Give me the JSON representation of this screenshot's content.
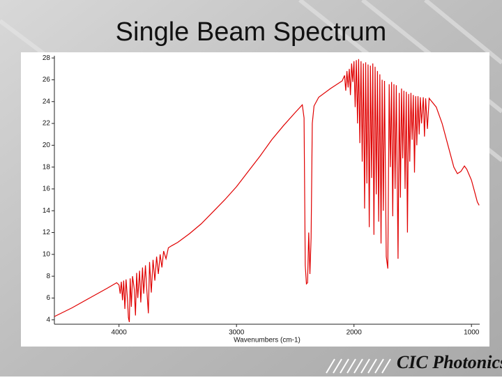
{
  "chart_data": {
    "type": "line",
    "title": "Single Beam Spectrum",
    "xlabel": "Wavenumbers (cm-1)",
    "x": [
      4550,
      4400,
      4250,
      4100,
      4020,
      4000,
      3990,
      3980,
      3970,
      3960,
      3950,
      3940,
      3930,
      3920,
      3912,
      3905,
      3895,
      3885,
      3870,
      3860,
      3850,
      3840,
      3825,
      3815,
      3800,
      3790,
      3775,
      3765,
      3750,
      3740,
      3725,
      3710,
      3695,
      3680,
      3665,
      3650,
      3635,
      3620,
      3600,
      3580,
      3550,
      3500,
      3400,
      3300,
      3200,
      3100,
      3000,
      2900,
      2800,
      2700,
      2600,
      2500,
      2440,
      2425,
      2415,
      2405,
      2395,
      2385,
      2375,
      2365,
      2355,
      2340,
      2300,
      2200,
      2100,
      2080,
      2070,
      2060,
      2050,
      2040,
      2030,
      2020,
      2010,
      2000,
      1990,
      1980,
      1970,
      1960,
      1950,
      1940,
      1930,
      1920,
      1910,
      1900,
      1890,
      1880,
      1870,
      1860,
      1850,
      1840,
      1830,
      1820,
      1810,
      1800,
      1790,
      1780,
      1770,
      1760,
      1750,
      1740,
      1725,
      1712,
      1700,
      1690,
      1680,
      1670,
      1660,
      1650,
      1640,
      1625,
      1615,
      1605,
      1595,
      1585,
      1575,
      1565,
      1555,
      1545,
      1535,
      1525,
      1515,
      1505,
      1495,
      1485,
      1475,
      1465,
      1455,
      1445,
      1435,
      1425,
      1410,
      1400,
      1390,
      1375,
      1360,
      1300,
      1250,
      1200,
      1150,
      1120,
      1090,
      1060,
      1040,
      1000,
      970,
      950,
      935
    ],
    "values": [
      4.3,
      5.1,
      6.0,
      6.9,
      7.4,
      7.2,
      6.4,
      7.5,
      5.8,
      7.6,
      5.0,
      7.7,
      6.2,
      4.2,
      3.8,
      7.8,
      5.2,
      8.0,
      6.8,
      4.4,
      8.3,
      6.0,
      8.5,
      5.6,
      8.8,
      6.4,
      9.0,
      7.0,
      4.6,
      9.3,
      6.5,
      9.5,
      7.6,
      9.8,
      8.2,
      10.0,
      8.8,
      10.3,
      9.6,
      10.6,
      10.8,
      11.1,
      11.9,
      12.8,
      13.9,
      15.0,
      16.2,
      17.6,
      19.0,
      20.5,
      21.8,
      23.0,
      23.7,
      22.5,
      9.0,
      7.3,
      7.4,
      12.0,
      8.2,
      11.5,
      22.0,
      23.6,
      24.4,
      25.2,
      25.9,
      26.4,
      25.0,
      26.8,
      25.3,
      27.0,
      24.6,
      27.5,
      25.8,
      27.7,
      23.5,
      27.8,
      22.0,
      27.9,
      20.2,
      27.7,
      18.5,
      27.5,
      14.2,
      27.6,
      16.5,
      27.4,
      12.5,
      27.3,
      17.0,
      27.5,
      11.8,
      27.2,
      15.5,
      26.8,
      13.0,
      26.5,
      11.0,
      26.0,
      14.0,
      25.9,
      9.8,
      8.7,
      25.6,
      18.0,
      25.8,
      13.5,
      25.6,
      16.0,
      25.5,
      9.6,
      24.8,
      15.2,
      25.2,
      18.8,
      25.0,
      16.0,
      24.9,
      12.0,
      24.7,
      18.5,
      24.8,
      20.5,
      24.6,
      17.5,
      24.5,
      20.0,
      24.5,
      21.0,
      24.4,
      22.0,
      24.4,
      20.8,
      24.3,
      21.5,
      24.3,
      23.5,
      22.0,
      20.0,
      18.0,
      17.4,
      17.6,
      18.1,
      17.8,
      16.8,
      15.6,
      14.8,
      14.5
    ],
    "color": "#e00000",
    "xlim": [
      4550,
      930
    ],
    "xticks": [
      4000,
      3000,
      2000,
      1000
    ],
    "ylim": [
      3.6,
      28.2
    ],
    "yticks": [
      4,
      6,
      8,
      10,
      12,
      14,
      16,
      18,
      20,
      22,
      24,
      26,
      28
    ]
  },
  "logo": "CIC Photonics"
}
